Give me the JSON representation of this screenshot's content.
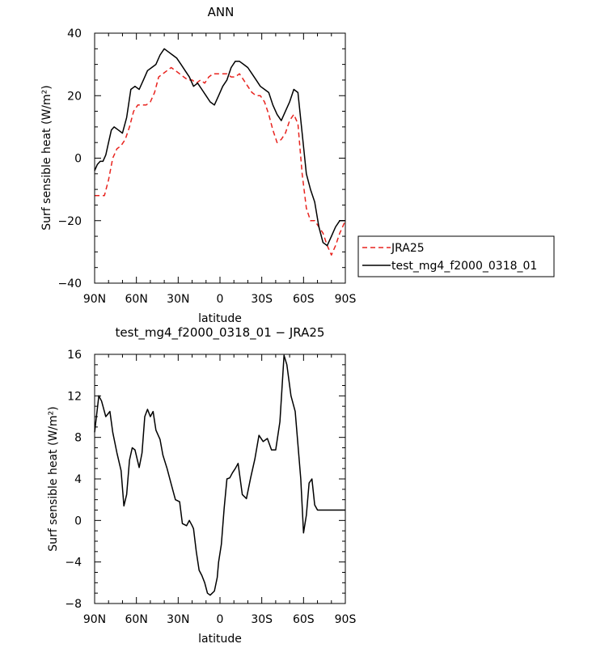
{
  "chart_data": [
    {
      "type": "line",
      "title": "ANN",
      "xlabel": "latitude",
      "ylabel": "Surf sensible heat (W/m²)",
      "ylim": [
        -40,
        40
      ],
      "yticks": [
        -40,
        -20,
        0,
        20,
        40
      ],
      "xlim": [
        90,
        -90
      ],
      "xticks": [
        90,
        60,
        30,
        0,
        -30,
        -60,
        -90
      ],
      "xticklabels": [
        "90N",
        "60N",
        "30N",
        "0",
        "30S",
        "60S",
        "90S"
      ],
      "legend": {
        "placement": "right",
        "entries": [
          "JRA25",
          "test_mg4_f2000_0318_01"
        ]
      },
      "series": [
        {
          "name": "JRA25",
          "color": "#e8231e",
          "dash": "dashed",
          "x": [
            90,
            86,
            83,
            80,
            77,
            74,
            71,
            68,
            65,
            62,
            59,
            56,
            53,
            50,
            47,
            44,
            41,
            38,
            35,
            32,
            29,
            26,
            23,
            20,
            17,
            14,
            11,
            8,
            5,
            2,
            0,
            -2,
            -5,
            -8,
            -11,
            -14,
            -17,
            -20,
            -23,
            -26,
            -29,
            -32,
            -35,
            -38,
            -41,
            -44,
            -47,
            -50,
            -53,
            -56,
            -59,
            -62,
            -65,
            -68,
            -71,
            -74,
            -77,
            -80,
            -83,
            -86,
            -88,
            -90
          ],
          "y": [
            -12,
            -12,
            -12,
            -7,
            0,
            3,
            4,
            6,
            10,
            15,
            17,
            17,
            17,
            18,
            21,
            26,
            27,
            28,
            29,
            28,
            27,
            26,
            25,
            25,
            24,
            25,
            24,
            26,
            27,
            27,
            27,
            27,
            27,
            26,
            26,
            27,
            25,
            23,
            21,
            20,
            20,
            18,
            14,
            9,
            5,
            6,
            8,
            12,
            14,
            11,
            -5,
            -16,
            -20,
            -20,
            -22,
            -24,
            -28,
            -31,
            -28,
            -24,
            -22,
            -20
          ]
        },
        {
          "name": "test_mg4_f2000_0318_01",
          "color": "#000000",
          "dash": "solid",
          "x": [
            90,
            88,
            86,
            84,
            82,
            80,
            78,
            76,
            73,
            70,
            67,
            64,
            61,
            58,
            55,
            52,
            49,
            46,
            43,
            40,
            37,
            34,
            31,
            28,
            25,
            22,
            19,
            16,
            13,
            10,
            7,
            4,
            1,
            -2,
            -5,
            -8,
            -11,
            -14,
            -17,
            -20,
            -23,
            -26,
            -29,
            -32,
            -35,
            -38,
            -41,
            -44,
            -47,
            -50,
            -53,
            -56,
            -59,
            -62,
            -65,
            -68,
            -71,
            -74,
            -77,
            -80,
            -83,
            -86,
            -88,
            -90
          ],
          "y": [
            -4,
            -2,
            -1,
            -1,
            1,
            5,
            9,
            10,
            9,
            8,
            13,
            22,
            23,
            22,
            25,
            28,
            29,
            30,
            33,
            35,
            34,
            33,
            32,
            30,
            28,
            26,
            23,
            24,
            22,
            20,
            18,
            17,
            20,
            23,
            25,
            29,
            31,
            31,
            30,
            29,
            27,
            25,
            23,
            22,
            21,
            17,
            14,
            12,
            15,
            18,
            22,
            21,
            8,
            -5,
            -10,
            -14,
            -22,
            -27,
            -28,
            -25,
            -22,
            -20,
            -20,
            -20
          ]
        }
      ]
    },
    {
      "type": "line",
      "title": "test_mg4_f2000_0318_01 − JRA25",
      "xlabel": "latitude",
      "ylabel": "Surf sensible heat (W/m²)",
      "ylim": [
        -8,
        16
      ],
      "yticks": [
        -8,
        -4,
        0,
        4,
        8,
        12,
        16
      ],
      "xlim": [
        90,
        -90
      ],
      "xticks": [
        90,
        60,
        30,
        0,
        -30,
        -60,
        -90
      ],
      "xticklabels": [
        "90N",
        "60N",
        "30N",
        "0",
        "30S",
        "60S",
        "90S"
      ],
      "series": [
        {
          "color": "#000000",
          "dash": "solid",
          "x": [
            90,
            87,
            85,
            82,
            79,
            77,
            74,
            71,
            69,
            67,
            65,
            63,
            61,
            58,
            56,
            54,
            52,
            50,
            48,
            46,
            43,
            41,
            38,
            35,
            32,
            29,
            27,
            24,
            22,
            20,
            19,
            17,
            15,
            13,
            11,
            9,
            7,
            4,
            2,
            1,
            -1,
            -3,
            -5,
            -7,
            -9,
            -11,
            -13,
            -16,
            -19,
            -22,
            -25,
            -28,
            -31,
            -34,
            -37,
            -40,
            -43,
            -46,
            -48,
            -51,
            -54,
            -56,
            -58,
            -60,
            -62,
            -64,
            -66,
            -68,
            -70,
            -72,
            -74,
            -77,
            -79,
            -81,
            -83,
            -86,
            -88,
            -90
          ],
          "y": [
            8.5,
            12.0,
            11.5,
            10.0,
            10.5,
            8.5,
            6.5,
            4.8,
            1.4,
            2.5,
            5.8,
            7.0,
            6.8,
            5.1,
            6.5,
            10.0,
            10.7,
            10.0,
            10.5,
            8.7,
            7.8,
            6.3,
            5.0,
            3.5,
            2.0,
            1.8,
            -0.3,
            -0.5,
            0.0,
            -0.5,
            -0.8,
            -3.0,
            -4.8,
            -5.3,
            -6.0,
            -7.0,
            -7.2,
            -6.8,
            -5.5,
            -4.0,
            -2.3,
            1.2,
            4.0,
            4.1,
            4.6,
            5.0,
            5.5,
            2.5,
            2.1,
            4.1,
            5.9,
            8.2,
            7.6,
            7.9,
            6.8,
            6.8,
            9.5,
            15.9,
            15.0,
            12.0,
            10.5,
            7.3,
            4.0,
            -1.2,
            0.5,
            3.6,
            4.0,
            1.5,
            1.0,
            1.0,
            1.0,
            1.0,
            1.0,
            1.0,
            1.0,
            1.0,
            1.0,
            1.0
          ]
        }
      ]
    }
  ]
}
